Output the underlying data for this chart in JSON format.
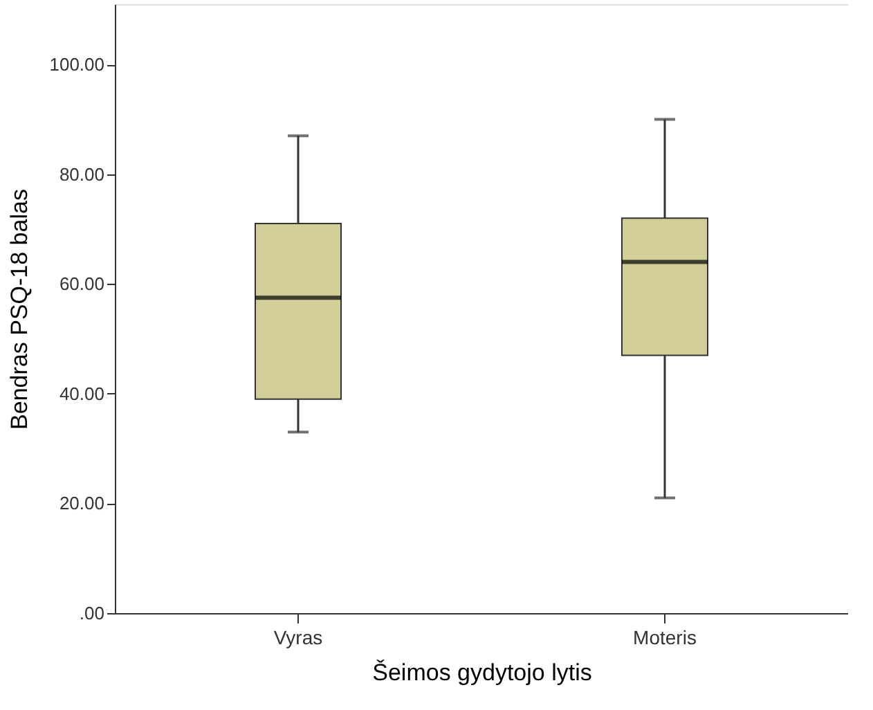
{
  "chart_data": {
    "type": "box",
    "xlabel": "Šeimos gydytojo lytis",
    "ylabel": "Bendras PSQ-18 balas",
    "categories": [
      "Vyras",
      "Moteris"
    ],
    "boxes": [
      {
        "low": 33,
        "q1": 39,
        "median": 57.5,
        "q3": 71,
        "high": 87
      },
      {
        "low": 21,
        "q1": 47,
        "median": 64,
        "q3": 72,
        "high": 90
      }
    ],
    "color": "#d3ce97",
    "ylim": [
      0,
      111
    ],
    "yticks": [
      {
        "value": 0,
        "label": ".00"
      },
      {
        "value": 20,
        "label": "20.00"
      },
      {
        "value": 40,
        "label": "40.00"
      },
      {
        "value": 60,
        "label": "60.00"
      },
      {
        "value": 80,
        "label": "80.00"
      },
      {
        "value": 100,
        "label": "100.00"
      }
    ],
    "grid": false
  }
}
